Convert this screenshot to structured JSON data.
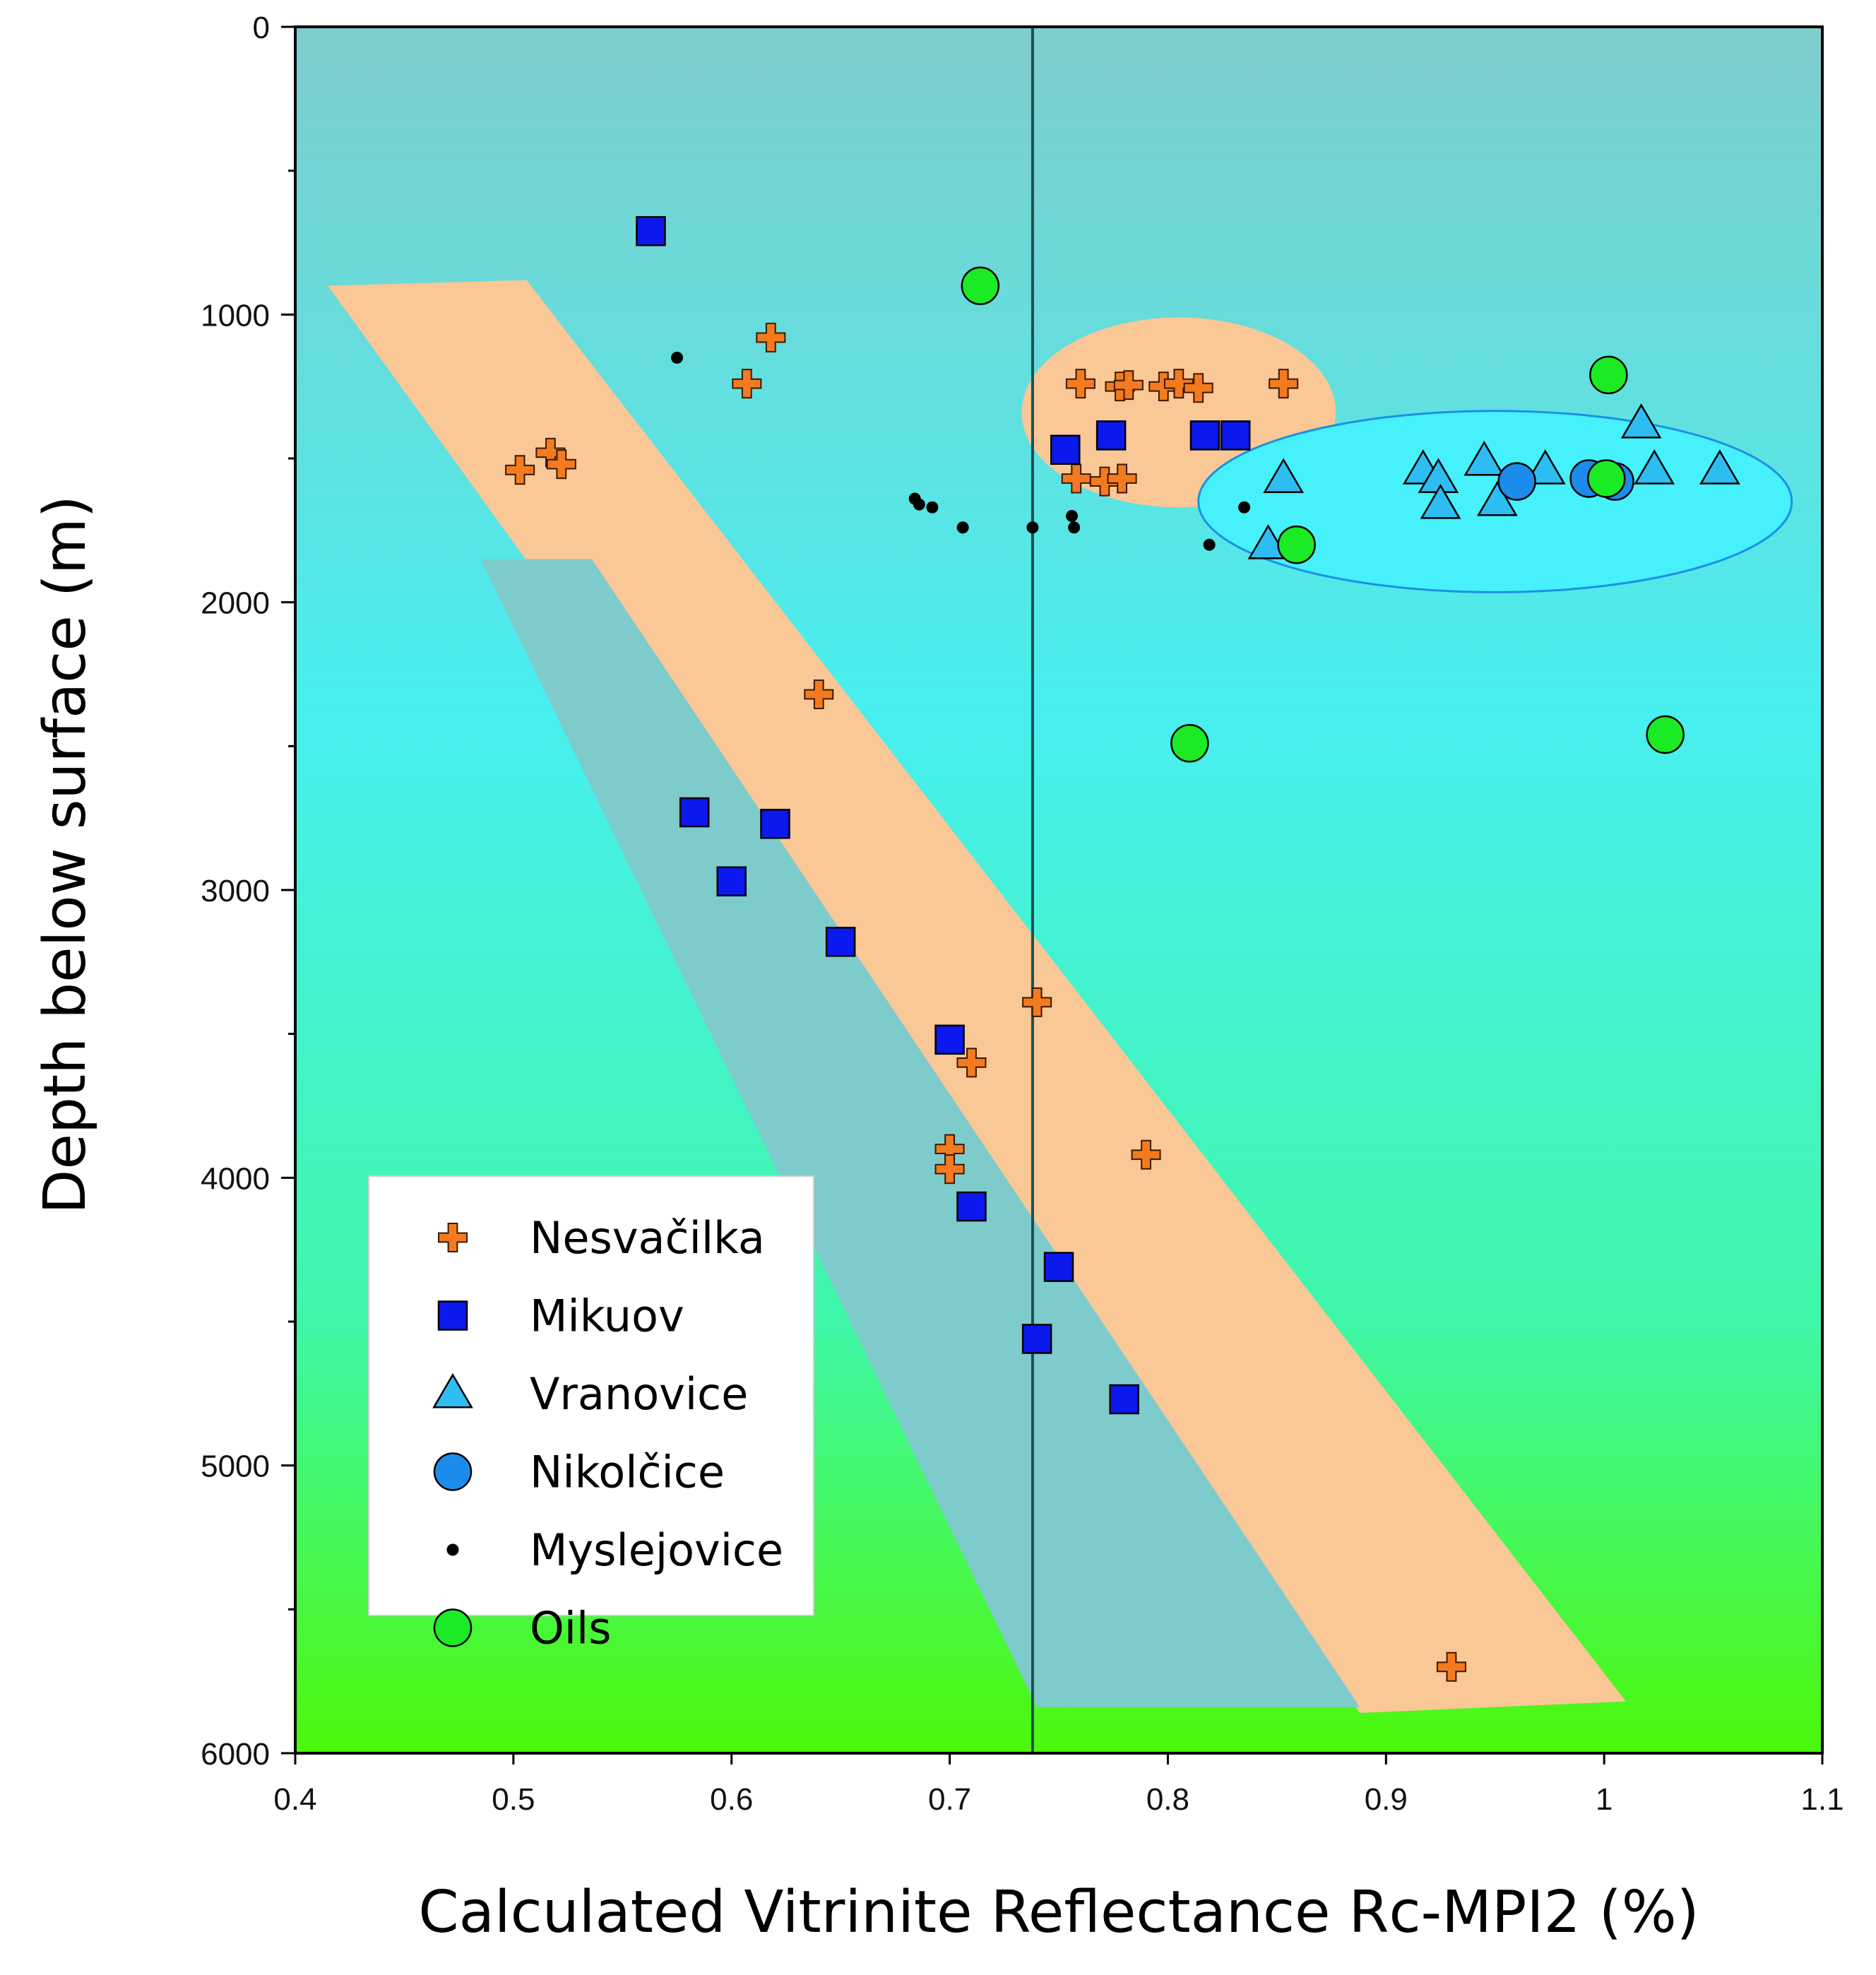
{
  "chart_data": {
    "type": "scatter",
    "xlabel": "Calculated Vitrinite Reflectance Rc-MPI2 (%)",
    "ylabel": "Depth below surface (m)",
    "xlim": [
      0.4,
      1.1
    ],
    "ylim": [
      0,
      6000
    ],
    "y_inverted": true,
    "x_ticks": [
      "0.4",
      "0.5",
      "0.6",
      "0.7",
      "0.8",
      "0.9",
      "1",
      "1.1"
    ],
    "y_ticks": [
      "0",
      "1000",
      "2000",
      "3000",
      "4000",
      "5000",
      "6000"
    ],
    "reference_line_x": 0.738,
    "background_gradient": [
      "#7fcdcc",
      "#48efef",
      "#3ff7a8",
      "#4cf80a"
    ],
    "bands": [
      {
        "name": "orange-band",
        "color": "#fac796",
        "polygon": [
          [
            0.415,
            900
          ],
          [
            0.506,
            880
          ],
          [
            1.01,
            5820
          ],
          [
            0.888,
            5860
          ]
        ]
      },
      {
        "name": "teal-band",
        "color": "#7ecbcb",
        "polygon": [
          [
            0.485,
            1850
          ],
          [
            0.536,
            1850
          ],
          [
            0.888,
            5840
          ],
          [
            0.74,
            5840
          ]
        ]
      }
    ],
    "ellipses": [
      {
        "name": "orange-ellipse",
        "color": "#fac796",
        "cx": 0.805,
        "cy": 1340,
        "rx": 0.072,
        "ry": 330
      },
      {
        "name": "blue-ellipse",
        "color": "#46f1fb",
        "stroke": "#1c90e6",
        "cx": 0.95,
        "cy": 1650,
        "rx": 0.136,
        "ry": 315
      }
    ],
    "series": [
      {
        "name": "Nesvačilka",
        "marker": "plus",
        "color": "#f47a20",
        "points": [
          [
            0.618,
            1080
          ],
          [
            0.607,
            1240
          ],
          [
            0.517,
            1480
          ],
          [
            0.522,
            1520
          ],
          [
            0.503,
            1540
          ],
          [
            0.76,
            1240
          ],
          [
            0.778,
            1250
          ],
          [
            0.782,
            1245
          ],
          [
            0.798,
            1250
          ],
          [
            0.805,
            1240
          ],
          [
            0.814,
            1255
          ],
          [
            0.853,
            1240
          ],
          [
            0.758,
            1570
          ],
          [
            0.771,
            1580
          ],
          [
            0.779,
            1570
          ],
          [
            0.64,
            2320
          ],
          [
            0.74,
            3390
          ],
          [
            0.71,
            3600
          ],
          [
            0.7,
            3900
          ],
          [
            0.7,
            3970
          ],
          [
            0.79,
            3920
          ],
          [
            0.93,
            5700
          ]
        ]
      },
      {
        "name": "Mikuov",
        "marker": "square",
        "color": "#0b19ee",
        "points": [
          [
            0.563,
            710
          ],
          [
            0.753,
            1470
          ],
          [
            0.774,
            1420
          ],
          [
            0.817,
            1420
          ],
          [
            0.831,
            1420
          ],
          [
            0.583,
            2730
          ],
          [
            0.62,
            2770
          ],
          [
            0.6,
            2970
          ],
          [
            0.65,
            3180
          ],
          [
            0.7,
            3520
          ],
          [
            0.71,
            4100
          ],
          [
            0.75,
            4310
          ],
          [
            0.74,
            4560
          ],
          [
            0.78,
            4770
          ]
        ]
      },
      {
        "name": "Vranovice",
        "marker": "triangle",
        "color": "#2ebdf2",
        "points": [
          [
            0.853,
            1570
          ],
          [
            0.846,
            1800
          ],
          [
            0.917,
            1540
          ],
          [
            0.924,
            1570
          ],
          [
            0.925,
            1660
          ],
          [
            0.945,
            1510
          ],
          [
            0.951,
            1650
          ],
          [
            0.973,
            1540
          ],
          [
            1.017,
            1380
          ],
          [
            1.023,
            1540
          ],
          [
            1.053,
            1540
          ]
        ]
      },
      {
        "name": "Nikolčice",
        "marker": "circle",
        "color": "#1b8ceb",
        "points": [
          [
            0.96,
            1580
          ],
          [
            0.993,
            1570
          ],
          [
            1.005,
            1580
          ]
        ]
      },
      {
        "name": "Myslejovice",
        "marker": "dot",
        "color": "#000000",
        "points": [
          [
            0.575,
            1150
          ],
          [
            0.684,
            1640
          ],
          [
            0.686,
            1660
          ],
          [
            0.692,
            1670
          ],
          [
            0.706,
            1740
          ],
          [
            0.738,
            1740
          ],
          [
            0.756,
            1700
          ],
          [
            0.757,
            1740
          ],
          [
            0.819,
            1800
          ],
          [
            0.835,
            1670
          ]
        ]
      },
      {
        "name": "Oils",
        "marker": "circle",
        "color": "#1aeb24",
        "points": [
          [
            0.714,
            900
          ],
          [
            1.002,
            1210
          ],
          [
            1.001,
            1570
          ],
          [
            0.859,
            1800
          ],
          [
            0.81,
            2490
          ],
          [
            1.028,
            2460
          ]
        ]
      }
    ]
  }
}
